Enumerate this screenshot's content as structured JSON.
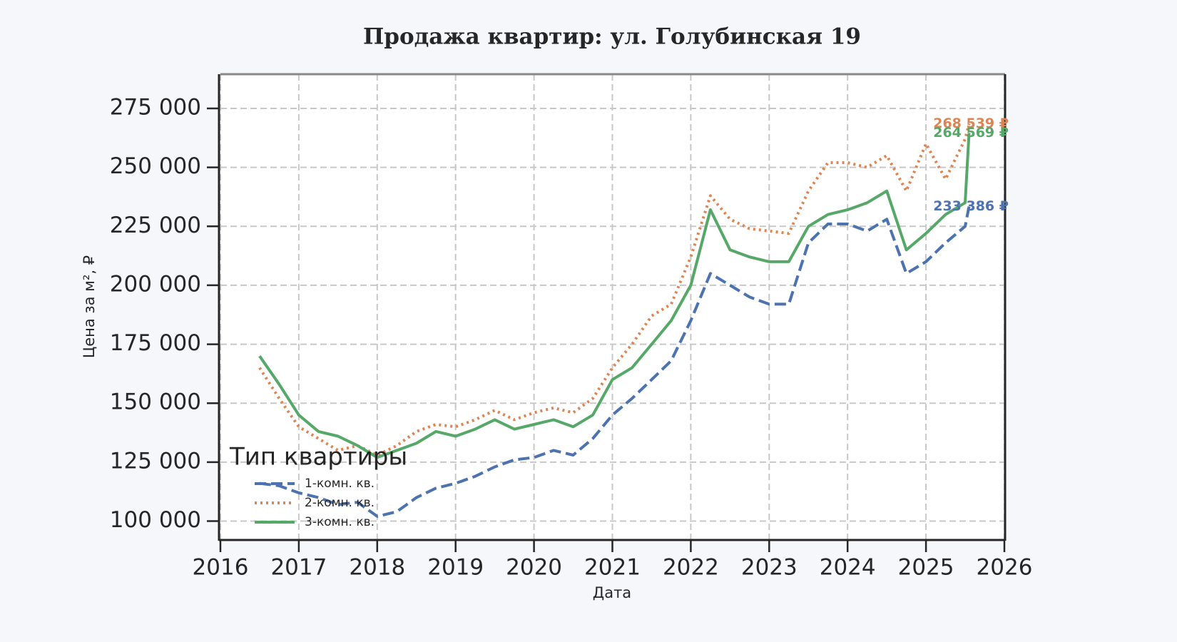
{
  "chart_data": {
    "type": "line",
    "title": "Продажа квартир: ул. Голубинская 19",
    "x_label": "Дата",
    "y_label": "Цена за м², ₽",
    "legend_title": "Тип квартиры",
    "legend_position": "lower left",
    "grid": true,
    "xlim": [
      2016,
      2026
    ],
    "xticks": [
      2016,
      2017,
      2018,
      2019,
      2020,
      2021,
      2022,
      2023,
      2024,
      2025,
      2026
    ],
    "ylim": [
      92000,
      289500
    ],
    "yticks": [
      {
        "value": 100000,
        "label": "100 000"
      },
      {
        "value": 125000,
        "label": "125 000"
      },
      {
        "value": 150000,
        "label": "150 000"
      },
      {
        "value": 175000,
        "label": "175 000"
      },
      {
        "value": 200000,
        "label": "200 000"
      },
      {
        "value": 225000,
        "label": "225 000"
      },
      {
        "value": 250000,
        "label": "250 000"
      },
      {
        "value": 275000,
        "label": "275 000"
      }
    ],
    "x": [
      2016.5,
      2016.75,
      2017.0,
      2017.25,
      2017.5,
      2017.75,
      2018.0,
      2018.25,
      2018.5,
      2018.75,
      2019.0,
      2019.25,
      2019.5,
      2019.75,
      2020.0,
      2020.25,
      2020.5,
      2020.75,
      2021.0,
      2021.25,
      2021.5,
      2021.75,
      2022.0,
      2022.25,
      2022.5,
      2022.75,
      2023.0,
      2023.25,
      2023.5,
      2023.75,
      2024.0,
      2024.25,
      2024.5,
      2024.75,
      2025.0,
      2025.25,
      2025.5,
      2025.55
    ],
    "series": [
      {
        "name": "1-комн. кв.",
        "color": "#4c72b0",
        "dash": "dashed",
        "end_label": "233 386 ₽",
        "values": [
          116000,
          115000,
          112000,
          110000,
          107000,
          108000,
          102000,
          104000,
          110000,
          114000,
          116000,
          119000,
          123000,
          126000,
          127000,
          130000,
          128000,
          135000,
          145000,
          152000,
          160000,
          168000,
          185000,
          205000,
          200000,
          195000,
          192000,
          192000,
          218000,
          226000,
          226000,
          223000,
          228000,
          205000,
          210000,
          218000,
          225000,
          233386
        ]
      },
      {
        "name": "2-комн. кв.",
        "color": "#dd8452",
        "dash": "dotted",
        "end_label": "268 539 ₽",
        "values": [
          165000,
          152000,
          140000,
          135000,
          130000,
          132000,
          128000,
          132000,
          138000,
          141000,
          140000,
          143000,
          147000,
          143000,
          146000,
          148000,
          146000,
          152000,
          165000,
          175000,
          187000,
          192000,
          212000,
          238000,
          228000,
          224000,
          223000,
          222000,
          240000,
          252000,
          252000,
          250000,
          255000,
          240000,
          260000,
          245000,
          262000,
          268539
        ]
      },
      {
        "name": "3-комн. кв.",
        "color": "#55a868",
        "dash": "solid",
        "end_label": "264 569 ₽",
        "values": [
          170000,
          158000,
          145000,
          138000,
          136000,
          132000,
          127000,
          130000,
          133000,
          138000,
          136000,
          139000,
          143000,
          139000,
          141000,
          143000,
          140000,
          145000,
          160000,
          165000,
          175000,
          185000,
          200000,
          232000,
          215000,
          212000,
          210000,
          210000,
          225000,
          230000,
          232000,
          235000,
          240000,
          215000,
          222000,
          230000,
          235000,
          264569
        ]
      }
    ]
  }
}
